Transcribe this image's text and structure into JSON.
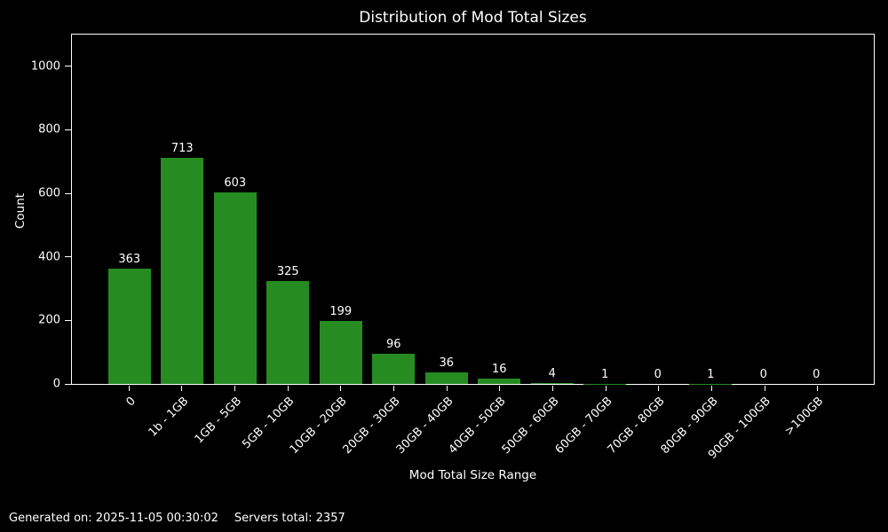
{
  "chart_data": {
    "type": "bar",
    "title": "Distribution of Mod Total Sizes",
    "xlabel": "Mod Total Size Range",
    "ylabel": "Count",
    "categories": [
      "0",
      "1b - 1GB",
      "1GB - 5GB",
      "5GB - 10GB",
      "10GB - 20GB",
      "20GB - 30GB",
      "30GB - 40GB",
      "40GB - 50GB",
      "50GB - 60GB",
      "60GB - 70GB",
      "70GB - 80GB",
      "80GB - 90GB",
      "90GB - 100GB",
      ">100GB"
    ],
    "values": [
      363,
      713,
      603,
      325,
      199,
      96,
      36,
      16,
      4,
      1,
      0,
      1,
      0,
      0
    ],
    "yticks": [
      0,
      200,
      400,
      600,
      800,
      1000
    ],
    "ylim": [
      0,
      1100
    ],
    "bar_color": "#268c22",
    "background_color": "#000000",
    "text_color": "#ffffff",
    "grid": false,
    "legend": null,
    "xtick_rotation": 45
  },
  "footer": {
    "generated_text": "Generated on: 2025-11-05 00:30:02",
    "servers_total_text": "Servers total: 2357"
  }
}
